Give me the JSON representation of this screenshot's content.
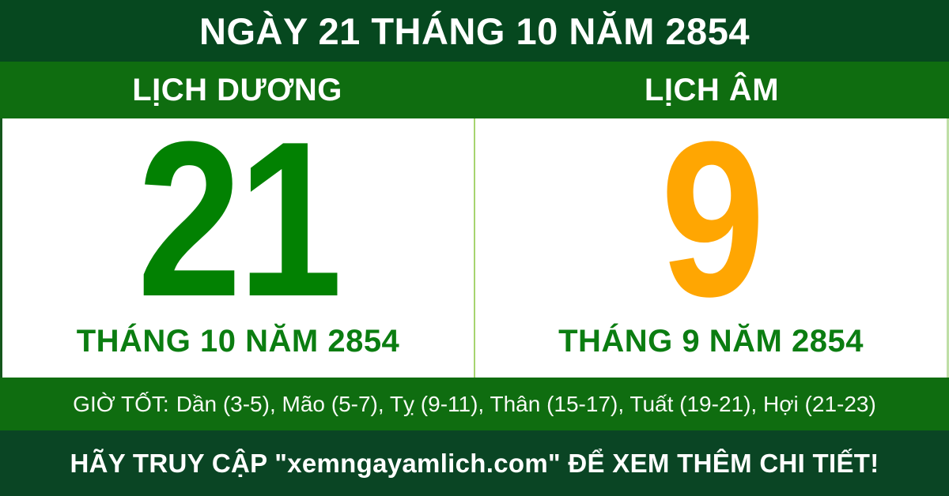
{
  "colors": {
    "dark_green_top": "#06481F",
    "bright_green": "#0F6D10",
    "dark_green_bottom": "#0A4524",
    "solar_day": "#028102",
    "lunar_day": "#FFA602",
    "month_green": "#0B7D11",
    "divider": "#A6D46F",
    "left_border": "#14571C",
    "right_border": "#BFDFA6"
  },
  "banner": {
    "title": "NGÀY 21 THÁNG 10 NĂM 2854"
  },
  "calendar": {
    "solar": {
      "header": "LỊCH DƯƠNG",
      "day": "21",
      "month_year": "THÁNG 10 NĂM 2854"
    },
    "lunar": {
      "header": "LỊCH ÂM",
      "day": "9",
      "month_year": "THÁNG 9 NĂM 2854"
    }
  },
  "good_hours": {
    "label": "GIỜ TỐT:",
    "text": "Dần (3-5), Mão (5-7), Tỵ (9-11), Thân (15-17), Tuất (19-21), Hợi (21-23)"
  },
  "footer": {
    "cta": "HÃY TRUY CẬP \"xemngayamlich.com\" ĐỂ XEM THÊM CHI TIẾT!"
  }
}
